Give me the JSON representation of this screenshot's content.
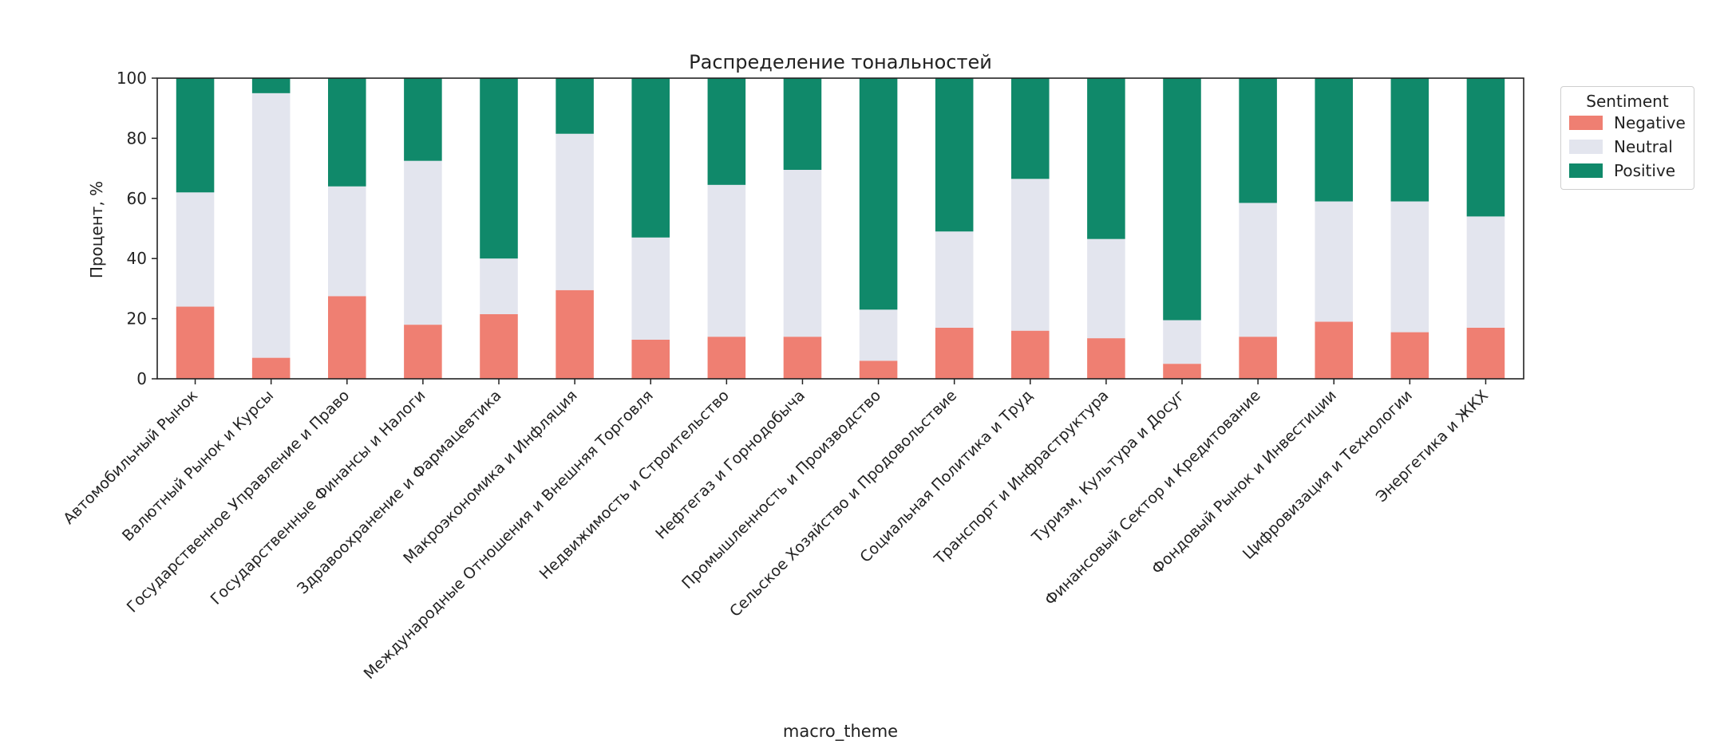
{
  "chart_data": {
    "type": "bar",
    "stacked": true,
    "percent": true,
    "title": "Распределение тональностей",
    "xlabel": "macro_theme",
    "ylabel": "Процент, %",
    "ylim": [
      0,
      100
    ],
    "yticks": [
      0,
      20,
      40,
      60,
      80,
      100
    ],
    "grid": false,
    "legend": {
      "title": "Sentiment",
      "position": "outside-right-top"
    },
    "categories": [
      "Автомобильный Рынок",
      "Валютный Рынок и Курсы",
      "Государственное Управление и Право",
      "Государственные Финансы и Налоги",
      "Здравоохранение и Фармацевтика",
      "Макроэкономика и Инфляция",
      "Международные Отношения и Внешняя Торговля",
      "Недвижимость и Строительство",
      "Нефтегаз и Горнодобыча",
      "Промышленность и Производство",
      "Сельское Хозяйство и Продовольствие",
      "Социальная Политика и Труд",
      "Транспорт и Инфраструктура",
      "Туризм, Культура и Досуг",
      "Финансовый Сектор и Кредитование",
      "Фондовый Рынок и Инвестиции",
      "Цифровизация и Технологии",
      "Энергетика и ЖКХ"
    ],
    "series": [
      {
        "name": "Negative",
        "color": "#ef7f72",
        "values": [
          24,
          7,
          27.5,
          18,
          21.5,
          29.5,
          13,
          14,
          14,
          6,
          17,
          16,
          13.5,
          5,
          14,
          19,
          15.5,
          17
        ]
      },
      {
        "name": "Neutral",
        "color": "#e3e5ee",
        "values": [
          38,
          88,
          36.5,
          54.5,
          18.5,
          52,
          34,
          50.5,
          55.5,
          17,
          32,
          50.5,
          33,
          14.5,
          44.5,
          40,
          43.5,
          37
        ]
      },
      {
        "name": "Positive",
        "color": "#10896a",
        "values": [
          38,
          5,
          36,
          27.5,
          60,
          18.5,
          53,
          35.5,
          30.5,
          77,
          51,
          33.5,
          53.5,
          80.5,
          41.5,
          41,
          41,
          46
        ]
      }
    ]
  }
}
